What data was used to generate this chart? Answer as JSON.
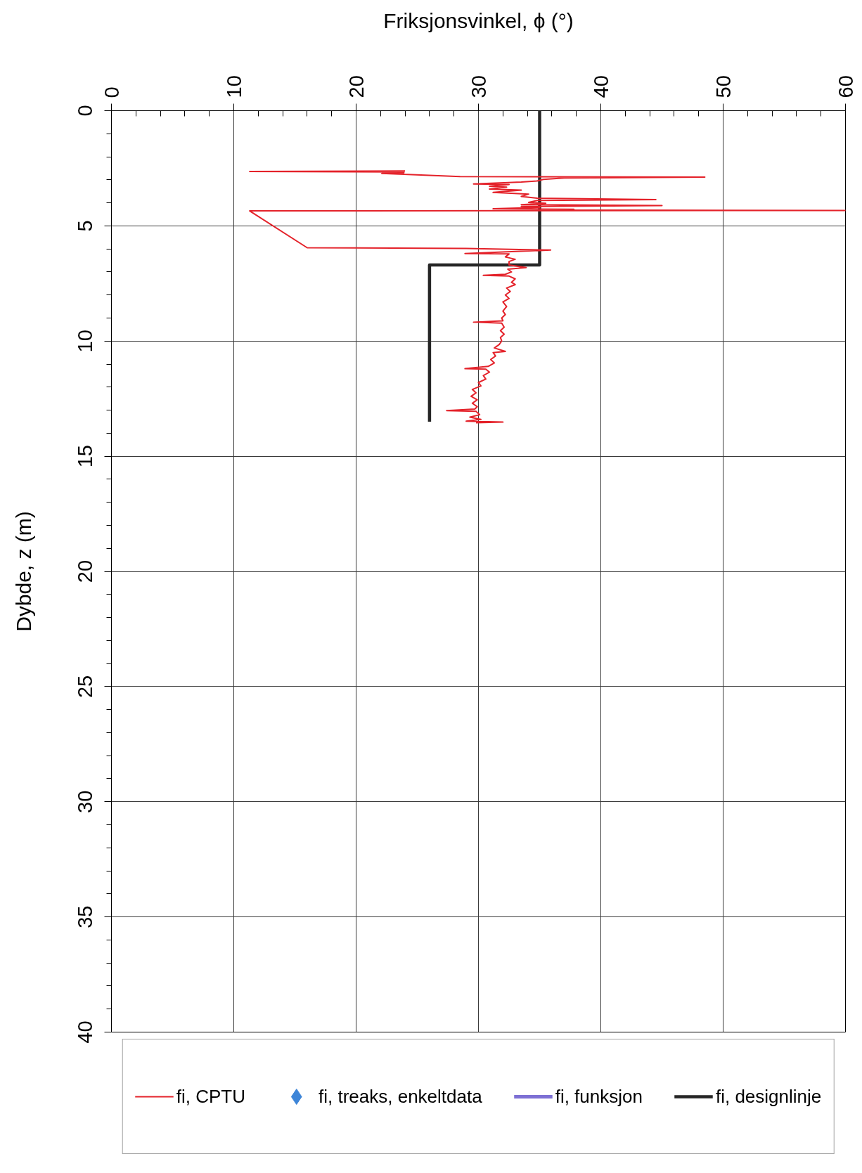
{
  "chart_data": {
    "type": "line",
    "xlabel": "Friksjonsvinkel, ϕ (°)",
    "ylabel": "Dybde, z (m)",
    "xlim": [
      0,
      60
    ],
    "ylim": [
      40,
      0
    ],
    "xticks": [
      0,
      {
        "value": 2,
        "label": null
      },
      {
        "value": 4,
        "label": null
      },
      {
        "value": 6,
        "label": null
      },
      {
        "value": 8,
        "label": null
      },
      10,
      {
        "value": 12,
        "label": null
      },
      {
        "value": 14,
        "label": null
      },
      {
        "value": 16,
        "label": null
      },
      {
        "value": 18,
        "label": null
      },
      20,
      {
        "value": 22,
        "label": null
      },
      {
        "value": 24,
        "label": null
      },
      {
        "value": 26,
        "label": null
      },
      {
        "value": 28,
        "label": null
      },
      30,
      {
        "value": 32,
        "label": null
      },
      {
        "value": 34,
        "label": null
      },
      {
        "value": 36,
        "label": null
      },
      {
        "value": 38,
        "label": null
      },
      40,
      {
        "value": 42,
        "label": null
      },
      {
        "value": 44,
        "label": null
      },
      {
        "value": 46,
        "label": null
      },
      {
        "value": 48,
        "label": null
      },
      50,
      {
        "value": 52,
        "label": null
      },
      {
        "value": 54,
        "label": null
      },
      {
        "value": 56,
        "label": null
      },
      {
        "value": 58,
        "label": null
      },
      60
    ],
    "yticks": [
      0,
      {
        "value": 1,
        "label": null
      },
      {
        "value": 2,
        "label": null
      },
      {
        "value": 3,
        "label": null
      },
      {
        "value": 4,
        "label": null
      },
      5,
      {
        "value": 6,
        "label": null
      },
      {
        "value": 7,
        "label": null
      },
      {
        "value": 8,
        "label": null
      },
      {
        "value": 9,
        "label": null
      },
      10,
      {
        "value": 11,
        "label": null
      },
      {
        "value": 12,
        "label": null
      },
      {
        "value": 13,
        "label": null
      },
      {
        "value": 14,
        "label": null
      },
      15,
      {
        "value": 16,
        "label": null
      },
      {
        "value": 17,
        "label": null
      },
      {
        "value": 18,
        "label": null
      },
      {
        "value": 19,
        "label": null
      },
      20,
      {
        "value": 21,
        "label": null
      },
      {
        "value": 22,
        "label": null
      },
      {
        "value": 23,
        "label": null
      },
      {
        "value": 24,
        "label": null
      },
      25,
      {
        "value": 26,
        "label": null
      },
      {
        "value": 27,
        "label": null
      },
      {
        "value": 28,
        "label": null
      },
      {
        "value": 29,
        "label": null
      },
      30,
      {
        "value": 31,
        "label": null
      },
      {
        "value": 32,
        "label": null
      },
      {
        "value": 33,
        "label": null
      },
      {
        "value": 34,
        "label": null
      },
      35,
      {
        "value": 36,
        "label": null
      },
      {
        "value": 37,
        "label": null
      },
      {
        "value": 38,
        "label": null
      },
      {
        "value": 39,
        "label": null
      },
      40
    ],
    "grid": true,
    "legend": "bottom",
    "series": [
      {
        "name": "fi, CPTU",
        "color": "#e4222a",
        "x": [
          24.0,
          11.3,
          23.9,
          23.9,
          22.1,
          28.5,
          48.5,
          37.0,
          35.3,
          34.8,
          33.5,
          29.6,
          32.5,
          30.9,
          32.3,
          30.9,
          33.5,
          31.2,
          34.1,
          33.5,
          34.8,
          44.5,
          34.8,
          34.1,
          35.5,
          33.5,
          45.0,
          33.5,
          35.0,
          31.2,
          37.8,
          35.0,
          60.0,
          11.3,
          16.0,
          29.0,
          35.9,
          28.9,
          32.5,
          32.2,
          33.0,
          32.5,
          32.5,
          33.9,
          32.4,
          32.7,
          32.2,
          30.4,
          32.5,
          33.0,
          32.7,
          33.0,
          32.3,
          32.6,
          32.2,
          32.5,
          32.0,
          32.3,
          32.0,
          32.2,
          31.9,
          32.0,
          29.6,
          31.9,
          32.1,
          31.8,
          32.1,
          31.8,
          31.9,
          31.7,
          31.3,
          32.2,
          31.2,
          31.4,
          31.0,
          31.3,
          30.8,
          28.9,
          30.6,
          30.9,
          30.4,
          30.6,
          30.0,
          30.2,
          29.5,
          29.8,
          29.4,
          29.9,
          29.5,
          29.9,
          29.7,
          27.4,
          29.8,
          30.1,
          29.3,
          30.2,
          29.0,
          32.0,
          29.8
        ],
        "values": [
          2.62,
          2.64,
          2.66,
          2.7,
          2.72,
          2.86,
          2.88,
          2.92,
          2.98,
          3.05,
          3.1,
          3.18,
          3.2,
          3.28,
          3.32,
          3.4,
          3.45,
          3.55,
          3.62,
          3.72,
          3.8,
          3.86,
          3.9,
          3.98,
          4.02,
          4.08,
          4.12,
          4.16,
          4.2,
          4.26,
          4.28,
          4.31,
          4.33,
          4.35,
          5.95,
          5.98,
          6.05,
          6.2,
          6.22,
          6.35,
          6.45,
          6.55,
          6.7,
          6.81,
          6.88,
          7.0,
          7.1,
          7.15,
          7.18,
          7.3,
          7.45,
          7.55,
          7.7,
          7.85,
          8.0,
          8.15,
          8.3,
          8.5,
          8.7,
          8.85,
          9.0,
          9.12,
          9.18,
          9.22,
          9.4,
          9.55,
          9.7,
          9.85,
          10.0,
          10.15,
          10.3,
          10.45,
          10.5,
          10.65,
          10.8,
          10.95,
          11.1,
          11.2,
          11.22,
          11.35,
          11.5,
          11.65,
          11.8,
          11.95,
          12.1,
          12.25,
          12.4,
          12.55,
          12.7,
          12.85,
          12.95,
          13.02,
          13.05,
          13.2,
          13.3,
          13.4,
          13.48,
          13.52,
          13.55
        ]
      },
      {
        "name": "fi, treaks, enkeltdata",
        "type": "scatter",
        "marker": "diamond",
        "color": "#3d85d8"
      },
      {
        "name": "fi, funksjon",
        "color": "#7d70d4"
      },
      {
        "name": "fi, designlinje",
        "color": "#262626",
        "x": [
          35,
          35,
          26,
          26
        ],
        "values": [
          0,
          6.7,
          6.7,
          13.5
        ]
      }
    ]
  }
}
